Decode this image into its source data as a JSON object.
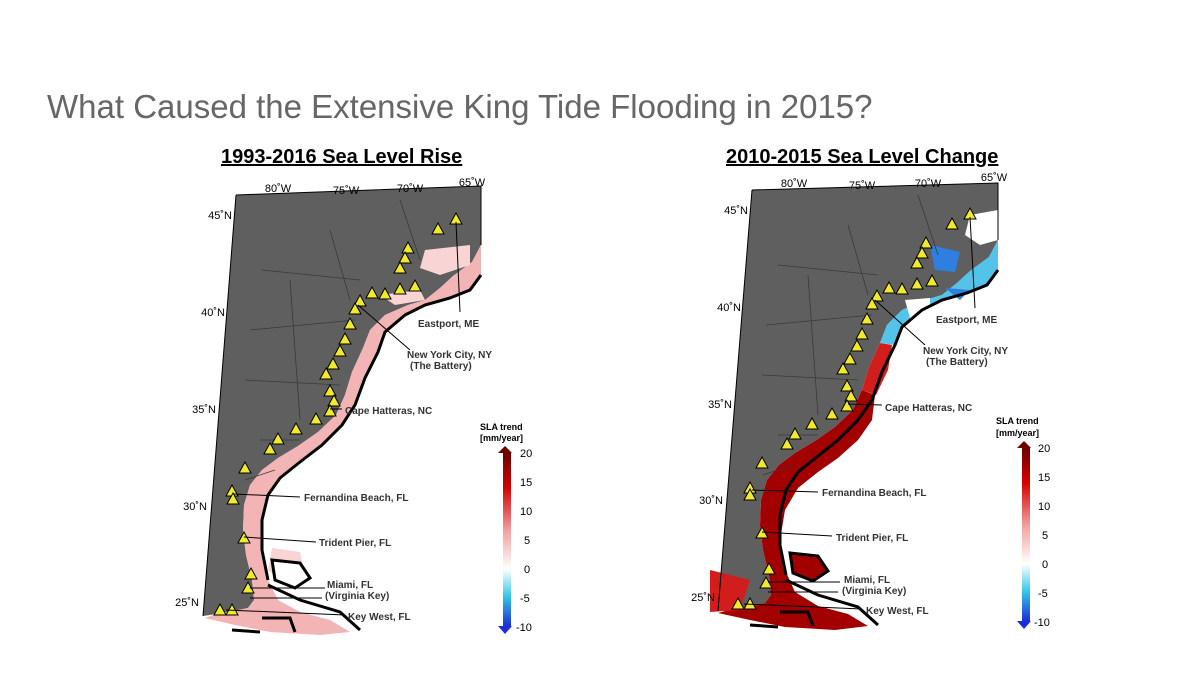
{
  "slide": {
    "title": "What Caused the Extensive King Tide Flooding in 2015?"
  },
  "maps": [
    {
      "title": "1993-2016 Sea Level Rise",
      "ocean_style": "pink"
    },
    {
      "title": "2010-2015 Sea Level Change",
      "ocean_style": "mixed"
    }
  ],
  "longitude_labels": [
    "80˚W",
    "75˚W",
    "70˚W",
    "65˚W"
  ],
  "latitude_labels": [
    "45˚N",
    "40˚N",
    "35˚N",
    "30˚N",
    "25˚N"
  ],
  "station_labels": {
    "eastport": "Eastport, ME",
    "nyc_line1": "New York City, NY",
    "nyc_line2": "(The Battery)",
    "hatteras": "Cape Hatteras, NC",
    "fernandina": "Fernandina Beach, FL",
    "trident": "Trident Pier, FL",
    "miami_line1": "Miami, FL",
    "miami_line2": "(Virginia Key)",
    "keywest": "Key West, FL"
  },
  "colorbar": {
    "title_line1": "SLA trend",
    "title_line2": "[mm/year]",
    "ticks": [
      "20",
      "15",
      "10",
      "5",
      "0",
      "-5",
      "-10"
    ],
    "min": -10,
    "max": 20,
    "colors": {
      "low": "#1a2fd8",
      "mid_low": "#35c6e6",
      "mid": "#ffffff",
      "mid_high": "#f4a0a0",
      "high": "#d40000",
      "top": "#6e0000"
    }
  },
  "colors": {
    "land": "#5f5f5f",
    "ocean_pink": "#f2b4b4",
    "ocean_pink_light": "#f8d4d4",
    "ocean_red": "#a30000",
    "ocean_red_mid": "#d21d1d",
    "ocean_blue": "#54c3ea",
    "ocean_blue_deep": "#2f7fe0",
    "station_fill": "#f0ea2a"
  }
}
